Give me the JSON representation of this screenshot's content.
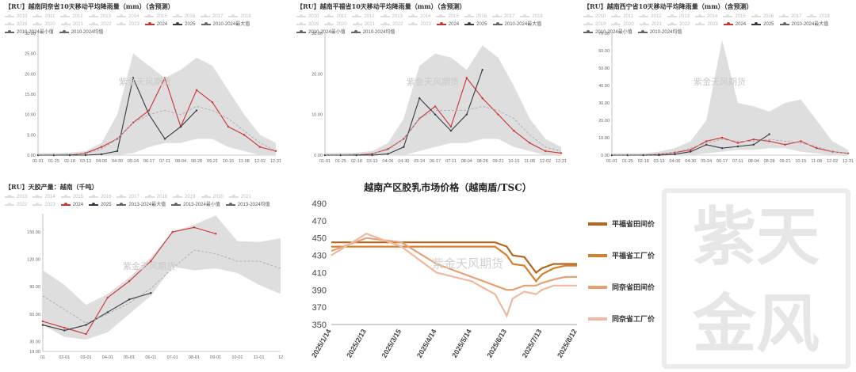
{
  "panels": {
    "rain1": {
      "title": "【RU】越南同奈省10天移动平均降雨量（mm）（含预测）"
    },
    "rain2": {
      "title": "【RU】越南平福省10天移动平均降雨量（mm）（含预测）"
    },
    "rain3": {
      "title": "【RU】越南西宁省10天移动平均降雨量（mm）（含预测）"
    },
    "output": {
      "title": "【RU】天胶产量：越南（千吨）"
    }
  },
  "rain_legend": [
    "2010",
    "2011",
    "2012",
    "2013",
    "2014",
    "2015",
    "2016",
    "2017",
    "2018",
    "2019",
    "2020",
    "2021",
    "2022",
    "2023",
    "2024",
    "2025",
    "2010-2024最大值",
    "2010-2024最小值",
    "2010-2024均值"
  ],
  "output_legend": [
    "2013",
    "2014",
    "2015",
    "2016",
    "2017",
    "2018",
    "2019",
    "2020",
    "2021",
    "2022",
    "2023",
    "2024",
    "2025",
    "2013-2024最大值",
    "2013-2024最小值",
    "2013-2024均值"
  ],
  "watermark": "紫金天风期货",
  "seal_text": "紫天金风",
  "colors": {
    "series2024": "#cc3333",
    "series2025": "#333a44",
    "range": "#dedede",
    "mean": "#aaaaaa",
    "line1": "#b5651d",
    "line2": "#d2802e",
    "line3": "#e8a070",
    "line4": "#f0b8a0"
  },
  "chart_data": [
    {
      "type": "line",
      "title": "【RU】越南同奈省10天移动平均降雨量（mm）（含预测）",
      "categories": [
        "01-01",
        "01-25",
        "02-18",
        "03-13",
        "04-06",
        "04-30",
        "05-24",
        "06-17",
        "07-11",
        "08-04",
        "08-28",
        "09-21",
        "10-15",
        "11-08",
        "12-02",
        "12-31"
      ],
      "ylim": [
        0,
        30
      ],
      "yticks": [
        "0.00",
        "5.00",
        "10.00",
        "15.00",
        "20.00",
        "25.00",
        "30.00"
      ],
      "range_max": [
        0.5,
        0.5,
        0.6,
        1,
        3,
        10,
        25,
        22,
        19,
        21,
        24,
        22,
        16,
        10,
        5,
        3
      ],
      "range_min": [
        0,
        0,
        0,
        0,
        0,
        0,
        0.5,
        2,
        3,
        3,
        4,
        4,
        2,
        1,
        0,
        0
      ],
      "series": [
        {
          "name": "2024",
          "values": [
            0,
            0,
            0,
            0.5,
            2,
            4,
            8,
            11,
            19,
            7,
            16,
            13,
            7,
            5,
            2,
            1
          ]
        },
        {
          "name": "2025",
          "values": [
            0,
            0,
            0,
            0,
            0.2,
            1,
            19,
            10,
            4,
            7,
            11,
            null,
            null,
            null,
            null,
            null
          ]
        },
        {
          "name": "2010-2024均值",
          "values": [
            0.1,
            0.1,
            0.2,
            0.4,
            1.5,
            4,
            8,
            10,
            11,
            10,
            12,
            11,
            9,
            6,
            3,
            1
          ]
        }
      ]
    },
    {
      "type": "line",
      "title": "【RU】越南平福省10天移动平均降雨量（mm）（含预测）",
      "categories": [
        "01-01",
        "01-25",
        "02-18",
        "03-13",
        "04-06",
        "04-30",
        "05-24",
        "06-17",
        "07-11",
        "08-04",
        "08-28",
        "09-21",
        "10-15",
        "11-08",
        "12-02",
        "12-31"
      ],
      "ylim": [
        0,
        30
      ],
      "yticks": [
        "0.00",
        "10.00",
        "20.00",
        "30.00"
      ],
      "range_max": [
        0.5,
        0.5,
        0.6,
        1,
        3,
        9,
        22,
        25,
        24,
        21,
        27,
        24,
        17,
        9,
        4,
        2
      ],
      "range_min": [
        0,
        0,
        0,
        0,
        0,
        0,
        1,
        2,
        3,
        3,
        4,
        4,
        2,
        1,
        0,
        0
      ],
      "series": [
        {
          "name": "2024",
          "values": [
            0,
            0,
            0,
            0.3,
            1.5,
            4,
            9,
            12,
            7,
            19,
            14,
            10,
            6,
            3,
            1,
            0.5
          ]
        },
        {
          "name": "2025",
          "values": [
            0,
            0,
            0,
            0,
            0.3,
            2,
            14,
            10,
            6,
            10,
            21,
            null,
            null,
            null,
            null,
            null
          ]
        },
        {
          "name": "2010-2024均值",
          "values": [
            0.1,
            0.1,
            0.2,
            0.4,
            1.3,
            4,
            9,
            11,
            11,
            11,
            12,
            11,
            9,
            5,
            2,
            1
          ]
        }
      ]
    },
    {
      "type": "line",
      "title": "【RU】越南西宁省10天移动平均降雨量（mm）（含预测）",
      "categories": [
        "01-01",
        "01-25",
        "02-18",
        "03-13",
        "04-06",
        "04-30",
        "05-24",
        "06-17",
        "07-11",
        "08-04",
        "08-28",
        "09-21",
        "10-15",
        "11-08",
        "12-02",
        "12-31"
      ],
      "ylim": [
        0,
        70
      ],
      "yticks": [
        "0.00",
        "10.00",
        "20.00",
        "30.00",
        "40.00",
        "50.00",
        "60.00",
        "70.00"
      ],
      "range_max": [
        1,
        1,
        1,
        2,
        4,
        8,
        20,
        66,
        30,
        28,
        25,
        30,
        32,
        20,
        8,
        3
      ],
      "range_min": [
        0,
        0,
        0,
        0,
        0,
        0,
        1,
        2,
        3,
        3,
        4,
        4,
        2,
        1,
        0,
        0
      ],
      "series": [
        {
          "name": "2024",
          "values": [
            0,
            0,
            0,
            0.5,
            1.5,
            3,
            8,
            10,
            7,
            9,
            8,
            6,
            8,
            4,
            2,
            1
          ]
        },
        {
          "name": "2025",
          "values": [
            0,
            0,
            0,
            0,
            0.5,
            2,
            6,
            4,
            5,
            6,
            12,
            null,
            null,
            null,
            null,
            null
          ]
        },
        {
          "name": "2010-2024均值",
          "values": [
            0.2,
            0.2,
            0.3,
            0.5,
            1.5,
            4,
            7,
            9,
            8,
            8,
            9,
            8,
            7,
            5,
            2,
            1
          ]
        }
      ]
    },
    {
      "type": "line",
      "title": "【RU】天胶产量：越南（千吨）",
      "categories": [
        "01",
        "02-01",
        "03-01",
        "04-01",
        "05-01",
        "06-01",
        "07-01",
        "08-01",
        "09-01",
        "10-01",
        "11-01",
        "12"
      ],
      "ylim": [
        19,
        170
      ],
      "yticks": [
        "19.00",
        "30.00",
        "60.00",
        "90.00",
        "120.00",
        "150.00"
      ],
      "range_max": [
        108,
        92,
        70,
        82,
        100,
        122,
        150,
        158,
        168,
        140,
        139,
        143
      ],
      "range_min": [
        48,
        35,
        32,
        40,
        60,
        80,
        112,
        108,
        110,
        105,
        92,
        82
      ],
      "series": [
        {
          "name": "2024",
          "values": [
            52,
            45,
            38,
            78,
            96,
            118,
            150,
            155,
            148,
            null,
            null,
            null
          ]
        },
        {
          "name": "2025",
          "values": [
            48,
            42,
            48,
            62,
            76,
            83,
            null,
            null,
            null,
            null,
            null,
            null
          ]
        },
        {
          "name": "2013-2024均值",
          "values": [
            80,
            65,
            50,
            60,
            72,
            88,
            110,
            130,
            126,
            118,
            118,
            110
          ]
        }
      ]
    },
    {
      "type": "line",
      "title": "越南产区胶乳市场价格（越南盾/TSC）",
      "x_ticks": [
        "2025/1/14",
        "2025/2/13",
        "2025/3/15",
        "2025/4/14",
        "2025/5/14",
        "2025/6/13",
        "2025/7/13",
        "2025/8/12"
      ],
      "ylim": [
        350,
        490
      ],
      "yticks": [
        "350",
        "370",
        "390",
        "410",
        "430",
        "450",
        "470",
        "490"
      ],
      "x_days": [
        0,
        30,
        60,
        90,
        120,
        140,
        150,
        155,
        165,
        175,
        180,
        190,
        200,
        210
      ],
      "series": [
        {
          "name": "平福省田间价",
          "values": [
            445,
            445,
            445,
            445,
            445,
            445,
            440,
            430,
            428,
            410,
            415,
            420,
            420,
            420
          ]
        },
        {
          "name": "平福省工厂价",
          "values": [
            440,
            440,
            440,
            440,
            440,
            440,
            430,
            420,
            418,
            400,
            408,
            415,
            418,
            418
          ]
        },
        {
          "name": "同奈省田间价",
          "values": [
            435,
            450,
            445,
            420,
            405,
            395,
            390,
            390,
            395,
            395,
            398,
            402,
            405,
            405
          ]
        },
        {
          "name": "同奈省工厂价",
          "values": [
            430,
            455,
            440,
            410,
            400,
            385,
            360,
            380,
            388,
            385,
            390,
            395,
            395,
            395
          ]
        }
      ]
    }
  ]
}
